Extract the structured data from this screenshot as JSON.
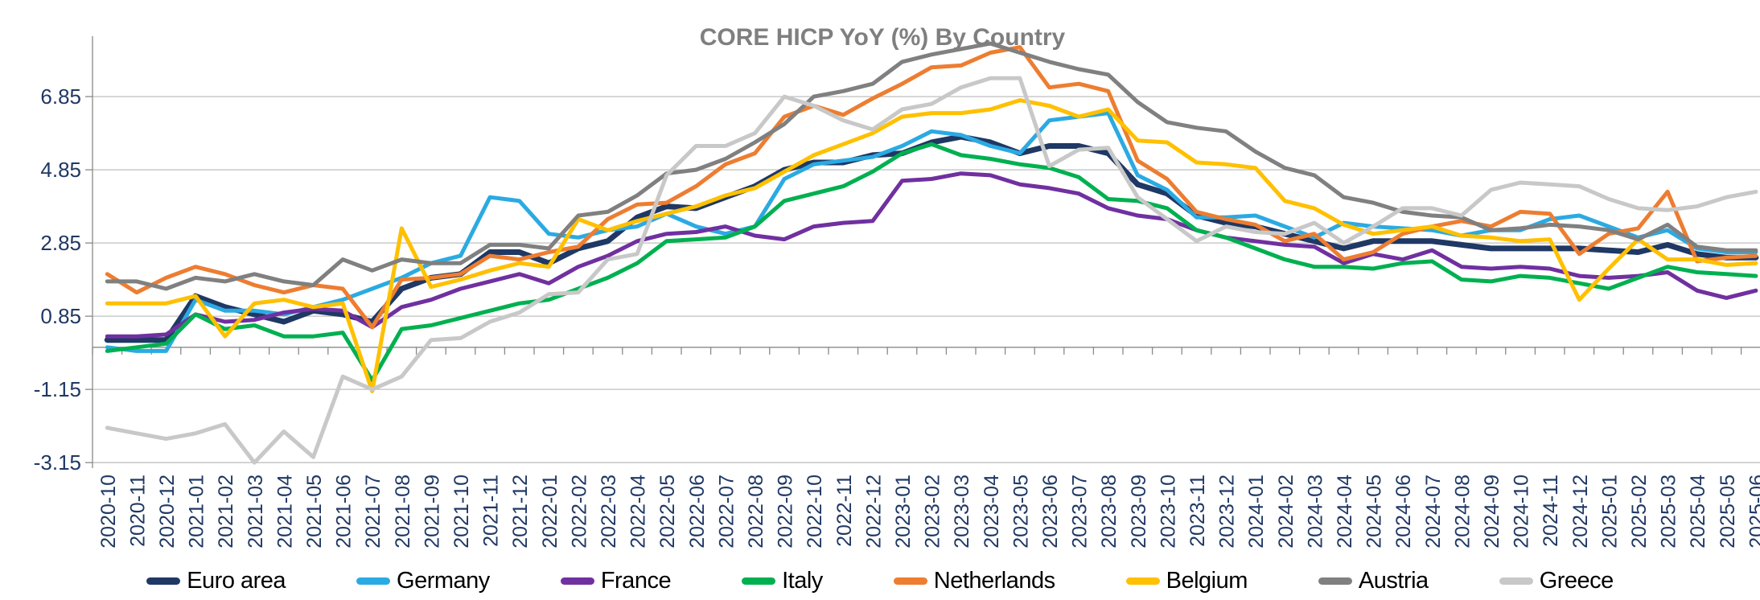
{
  "chart_data": {
    "type": "line",
    "title": "CORE HICP YoY (%) By Country",
    "title_color": "#7F7F7F",
    "axis_label_color": "#1F3864",
    "gridline_color": "#BFBFBF",
    "axis_line_color": "#898989",
    "grid": "horizontal",
    "legend_position": "bottom",
    "y_tick_labels": [
      "6.85",
      "4.85",
      "2.85",
      "0.85",
      "-1.15",
      "-3.15"
    ],
    "y_tick_values": [
      6.85,
      4.85,
      2.85,
      0.85,
      -1.15,
      -3.15
    ],
    "ylim": [
      -3.3,
      8.5
    ],
    "x": [
      "2020-10",
      "2020-11",
      "2020-12",
      "2021-01",
      "2021-02",
      "2021-03",
      "2021-04",
      "2021-05",
      "2021-06",
      "2021-07",
      "2021-08",
      "2021-09",
      "2021-10",
      "2021-11",
      "2021-12",
      "2022-01",
      "2022-02",
      "2022-03",
      "2022-04",
      "2022-05",
      "2022-06",
      "2022-07",
      "2022-08",
      "2022-09",
      "2022-10",
      "2022-11",
      "2022-12",
      "2023-01",
      "2023-02",
      "2023-03",
      "2023-04",
      "2023-05",
      "2023-06",
      "2023-07",
      "2023-08",
      "2023-09",
      "2023-10",
      "2023-11",
      "2023-12",
      "2024-01",
      "2024-02",
      "2024-03",
      "2024-04",
      "2024-05",
      "2024-06",
      "2024-07",
      "2024-08",
      "2024-09",
      "2024-10",
      "2024-11",
      "2024-12",
      "2025-01",
      "2025-02",
      "2025-03",
      "2025-04",
      "2025-05",
      "2025-06"
    ],
    "series": [
      {
        "name": "Euro area",
        "color": "#1F3864",
        "width": 7,
        "values": [
          0.2,
          0.2,
          0.2,
          1.4,
          1.1,
          0.9,
          0.7,
          1.0,
          0.9,
          0.7,
          1.6,
          1.9,
          2.0,
          2.6,
          2.6,
          2.3,
          2.7,
          2.9,
          3.55,
          3.85,
          3.8,
          4.1,
          4.4,
          4.85,
          5.05,
          5.05,
          5.25,
          5.3,
          5.6,
          5.75,
          5.6,
          5.3,
          5.5,
          5.5,
          5.3,
          4.45,
          4.2,
          3.6,
          3.4,
          3.3,
          3.1,
          2.9,
          2.7,
          2.9,
          2.9,
          2.9,
          2.8,
          2.7,
          2.7,
          2.7,
          2.7,
          2.65,
          2.6,
          2.8,
          2.55,
          2.45,
          2.45
        ]
      },
      {
        "name": "Germany",
        "color": "#2BAAE2",
        "width": 5,
        "values": [
          0.0,
          -0.1,
          -0.1,
          1.3,
          1.0,
          1.0,
          0.9,
          1.1,
          1.3,
          1.6,
          1.9,
          2.3,
          2.5,
          4.1,
          4.0,
          3.1,
          3.0,
          3.2,
          3.3,
          3.65,
          3.3,
          3.1,
          3.3,
          4.6,
          5.0,
          5.1,
          5.2,
          5.5,
          5.9,
          5.8,
          5.5,
          5.3,
          6.2,
          6.3,
          6.4,
          4.7,
          4.3,
          3.55,
          3.55,
          3.6,
          3.3,
          3.0,
          3.4,
          3.3,
          3.25,
          3.2,
          3.05,
          3.2,
          3.2,
          3.5,
          3.6,
          3.3,
          3.0,
          3.2,
          2.7,
          2.6,
          2.6
        ]
      },
      {
        "name": "France",
        "color": "#7030A0",
        "width": 5,
        "values": [
          0.3,
          0.3,
          0.35,
          0.9,
          0.7,
          0.75,
          0.95,
          1.05,
          1.0,
          0.55,
          1.1,
          1.3,
          1.6,
          1.8,
          2.0,
          1.75,
          2.2,
          2.5,
          2.9,
          3.1,
          3.15,
          3.3,
          3.05,
          2.95,
          3.3,
          3.4,
          3.45,
          4.55,
          4.6,
          4.75,
          4.7,
          4.45,
          4.35,
          4.2,
          3.8,
          3.6,
          3.5,
          3.2,
          3.0,
          2.9,
          2.8,
          2.75,
          2.3,
          2.55,
          2.4,
          2.65,
          2.2,
          2.15,
          2.2,
          2.15,
          1.95,
          1.9,
          1.95,
          2.05,
          1.55,
          1.35,
          1.55
        ]
      },
      {
        "name": "Italy",
        "color": "#00B050",
        "width": 5,
        "values": [
          -0.1,
          0.0,
          0.1,
          0.9,
          0.5,
          0.6,
          0.3,
          0.3,
          0.4,
          -0.9,
          0.5,
          0.6,
          0.8,
          1.0,
          1.2,
          1.3,
          1.6,
          1.9,
          2.3,
          2.9,
          2.95,
          3.0,
          3.3,
          4.0,
          4.2,
          4.4,
          4.8,
          5.3,
          5.55,
          5.25,
          5.15,
          5.0,
          4.9,
          4.65,
          4.05,
          4.0,
          3.8,
          3.2,
          3.0,
          2.7,
          2.4,
          2.2,
          2.2,
          2.15,
          2.3,
          2.35,
          1.85,
          1.8,
          1.95,
          1.9,
          1.75,
          1.6,
          1.9,
          2.2,
          2.05,
          2.0,
          1.95
        ]
      },
      {
        "name": "Netherlands",
        "color": "#ED7D31",
        "width": 5,
        "values": [
          2.0,
          1.5,
          1.9,
          2.2,
          2.0,
          1.7,
          1.5,
          1.7,
          1.6,
          0.55,
          1.85,
          1.9,
          2.0,
          2.5,
          2.4,
          2.6,
          2.75,
          3.5,
          3.9,
          3.95,
          4.4,
          5.0,
          5.3,
          6.3,
          6.6,
          6.35,
          6.8,
          7.2,
          7.65,
          7.7,
          8.05,
          8.2,
          7.1,
          7.2,
          7.0,
          5.1,
          4.6,
          3.7,
          3.5,
          3.35,
          2.9,
          3.1,
          2.4,
          2.6,
          3.1,
          3.3,
          3.45,
          3.3,
          3.7,
          3.65,
          2.55,
          3.1,
          3.25,
          4.25,
          2.35,
          2.45,
          2.5
        ]
      },
      {
        "name": "Belgium",
        "color": "#FFC000",
        "width": 5,
        "values": [
          1.2,
          1.2,
          1.2,
          1.4,
          0.3,
          1.2,
          1.3,
          1.1,
          1.2,
          -1.2,
          3.25,
          1.65,
          1.85,
          2.1,
          2.3,
          2.2,
          3.5,
          3.2,
          3.45,
          3.65,
          3.85,
          4.15,
          4.35,
          4.8,
          5.25,
          5.55,
          5.85,
          6.3,
          6.4,
          6.4,
          6.5,
          6.75,
          6.6,
          6.3,
          6.5,
          5.65,
          5.6,
          5.05,
          5.0,
          4.9,
          4.0,
          3.8,
          3.35,
          3.1,
          3.2,
          3.3,
          3.05,
          3.0,
          2.9,
          2.95,
          1.3,
          2.15,
          2.95,
          2.4,
          2.4,
          2.25,
          2.3
        ]
      },
      {
        "name": "Austria",
        "color": "#808080",
        "width": 5,
        "values": [
          1.8,
          1.8,
          1.6,
          1.9,
          1.8,
          2.0,
          1.8,
          1.7,
          2.4,
          2.1,
          2.4,
          2.3,
          2.3,
          2.8,
          2.8,
          2.7,
          3.6,
          3.7,
          4.15,
          4.75,
          4.85,
          5.15,
          5.6,
          6.1,
          6.85,
          7.0,
          7.2,
          7.8,
          8.0,
          8.15,
          8.3,
          8.05,
          7.8,
          7.6,
          7.45,
          6.7,
          6.15,
          6.0,
          5.9,
          5.35,
          4.9,
          4.7,
          4.1,
          3.95,
          3.7,
          3.6,
          3.55,
          3.2,
          3.25,
          3.35,
          3.3,
          3.2,
          2.95,
          3.35,
          2.75,
          2.65,
          2.65
        ]
      },
      {
        "name": "Greece",
        "color": "#C8C8C8",
        "width": 5,
        "values": [
          -2.2,
          -2.35,
          -2.5,
          -2.35,
          -2.1,
          -3.15,
          -2.3,
          -3.0,
          -0.8,
          -1.15,
          -0.8,
          0.2,
          0.25,
          0.7,
          0.95,
          1.45,
          1.5,
          2.4,
          2.55,
          4.7,
          5.5,
          5.5,
          5.85,
          6.85,
          6.6,
          6.2,
          5.95,
          6.5,
          6.65,
          7.1,
          7.35,
          7.35,
          4.95,
          5.4,
          5.45,
          4.1,
          3.5,
          2.9,
          3.3,
          3.15,
          3.1,
          3.4,
          2.85,
          3.3,
          3.8,
          3.8,
          3.6,
          4.3,
          4.5,
          4.45,
          4.4,
          4.05,
          3.8,
          3.75,
          3.85,
          4.1,
          4.25
        ]
      }
    ]
  }
}
